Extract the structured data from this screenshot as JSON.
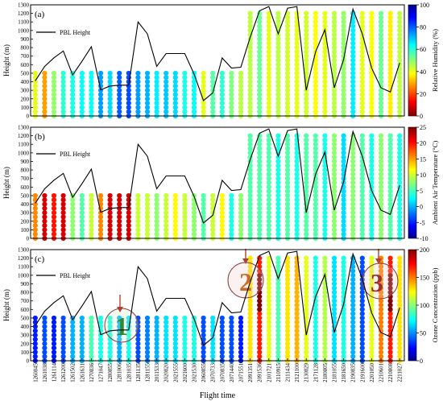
{
  "chart_data": {
    "type": "scatter",
    "xlabel": "Flight time",
    "ylabel": "Height (m)",
    "y_ticks": [
      0,
      100,
      200,
      300,
      400,
      500,
      600,
      700,
      800,
      900,
      1000,
      1100,
      1200,
      1300
    ],
    "ylim": [
      0,
      1300
    ],
    "grid": false,
    "categories": [
      "1260845",
      "1261038",
      "1261114",
      "1261200",
      "1261502",
      "1261631",
      "1270836",
      "1271047",
      "1280855",
      "1281006",
      "1281035",
      "1281135",
      "1281155",
      "2011533",
      "2020820",
      "2021555",
      "2021600",
      "2021530",
      "2060855",
      "2070733",
      "2070835",
      "2071440",
      "2071551",
      "2091351",
      "2091536",
      "2101721",
      "2110915",
      "2111434",
      "2121100",
      "2130829",
      "2171128",
      "2180805",
      "2181055",
      "2181650",
      "2190835",
      "2191600",
      "2201050",
      "2210601",
      "2210808",
      "2211027"
    ],
    "panels": [
      {
        "panel_label": "(a)",
        "legend_label": "PBL Height",
        "colorbar_label": "Relative Humidity (%)",
        "colorbar_range": [
          0,
          100
        ],
        "colorbar_ticks": [
          0,
          20,
          40,
          60,
          80,
          100
        ],
        "colormap": "jet_r",
        "pbl_height": [
          410,
          580,
          680,
          760,
          480,
          640,
          810,
          305,
          350,
          360,
          360,
          1100,
          960,
          580,
          730,
          730,
          730,
          490,
          180,
          270,
          680,
          560,
          570,
          920,
          1230,
          1280,
          960,
          1260,
          1280,
          300,
          750,
          1010,
          330,
          660,
          1250,
          960,
          560,
          330,
          280,
          620
        ],
        "profile_top": [
          520,
          520,
          520,
          520,
          520,
          520,
          520,
          520,
          520,
          520,
          520,
          520,
          520,
          520,
          520,
          520,
          520,
          520,
          520,
          520,
          520,
          520,
          520,
          1200,
          1200,
          1200,
          1200,
          1200,
          1200,
          1200,
          1200,
          1200,
          1200,
          1200,
          1200,
          1200,
          1200,
          1200,
          1200,
          1200
        ],
        "values": [
          40,
          28,
          48,
          58,
          60,
          62,
          62,
          72,
          66,
          78,
          80,
          72,
          70,
          64,
          68,
          66,
          60,
          62,
          40,
          54,
          58,
          50,
          44,
          44,
          52,
          40,
          44,
          42,
          40,
          42,
          38,
          40,
          44,
          48,
          64,
          40,
          38,
          52,
          36,
          44
        ]
      },
      {
        "panel_label": "(b)",
        "legend_label": "PBL Height",
        "colorbar_label": "Ambient Air Temperature (°C)",
        "colorbar_range": [
          -10,
          25
        ],
        "colorbar_ticks": [
          -10,
          -5,
          0,
          5,
          10,
          15,
          20,
          25
        ],
        "colormap": "jet",
        "pbl_height": [
          410,
          580,
          680,
          760,
          480,
          640,
          810,
          305,
          350,
          360,
          360,
          1100,
          960,
          580,
          730,
          730,
          730,
          490,
          180,
          270,
          680,
          560,
          570,
          920,
          1230,
          1280,
          960,
          1260,
          1280,
          300,
          750,
          1010,
          330,
          660,
          1250,
          960,
          560,
          330,
          280,
          620
        ],
        "profile_top": [
          520,
          520,
          520,
          520,
          520,
          520,
          520,
          520,
          520,
          520,
          520,
          520,
          520,
          520,
          520,
          520,
          520,
          520,
          520,
          520,
          520,
          520,
          520,
          1200,
          1200,
          1200,
          1200,
          1200,
          1200,
          1200,
          1200,
          1200,
          1200,
          1200,
          1200,
          1200,
          1200,
          1200,
          1200,
          1200
        ],
        "values": [
          16,
          22,
          20,
          22,
          8,
          6,
          10,
          16,
          22,
          22,
          22,
          10,
          10,
          8,
          10,
          12,
          10,
          8,
          6,
          10,
          12,
          4,
          8,
          6,
          6,
          6,
          4,
          6,
          4,
          6,
          6,
          4,
          8,
          2,
          8,
          6,
          4,
          8,
          6,
          4
        ]
      },
      {
        "panel_label": "(c)",
        "legend_label": "PBL Height",
        "colorbar_label": "Ozone Concentration (ppb)",
        "colorbar_range": [
          0,
          200
        ],
        "colorbar_ticks": [
          0,
          50,
          100,
          150,
          200
        ],
        "colormap": "jet",
        "annotations": [
          "1",
          "2",
          "3"
        ],
        "pbl_height": [
          410,
          580,
          680,
          760,
          480,
          640,
          810,
          305,
          350,
          360,
          360,
          1100,
          960,
          580,
          730,
          730,
          730,
          490,
          180,
          270,
          680,
          560,
          570,
          920,
          1230,
          1280,
          960,
          1260,
          1280,
          300,
          750,
          1010,
          330,
          660,
          1250,
          960,
          560,
          330,
          280,
          620
        ],
        "profile_top": [
          520,
          520,
          520,
          520,
          520,
          520,
          520,
          520,
          520,
          520,
          520,
          520,
          520,
          520,
          520,
          520,
          520,
          520,
          520,
          520,
          520,
          520,
          520,
          1200,
          1200,
          1200,
          1200,
          1200,
          1200,
          1200,
          1200,
          1200,
          1200,
          1200,
          1200,
          1200,
          1200,
          1200,
          1200,
          1200
        ],
        "values": [
          30,
          40,
          30,
          40,
          60,
          60,
          90,
          80,
          80,
          60,
          70,
          40,
          50,
          60,
          70,
          70,
          80,
          80,
          40,
          70,
          40,
          40,
          30,
          130,
          170,
          120,
          90,
          130,
          140,
          120,
          80,
          110,
          70,
          80,
          60,
          40,
          120,
          150,
          170,
          130
        ]
      }
    ]
  }
}
